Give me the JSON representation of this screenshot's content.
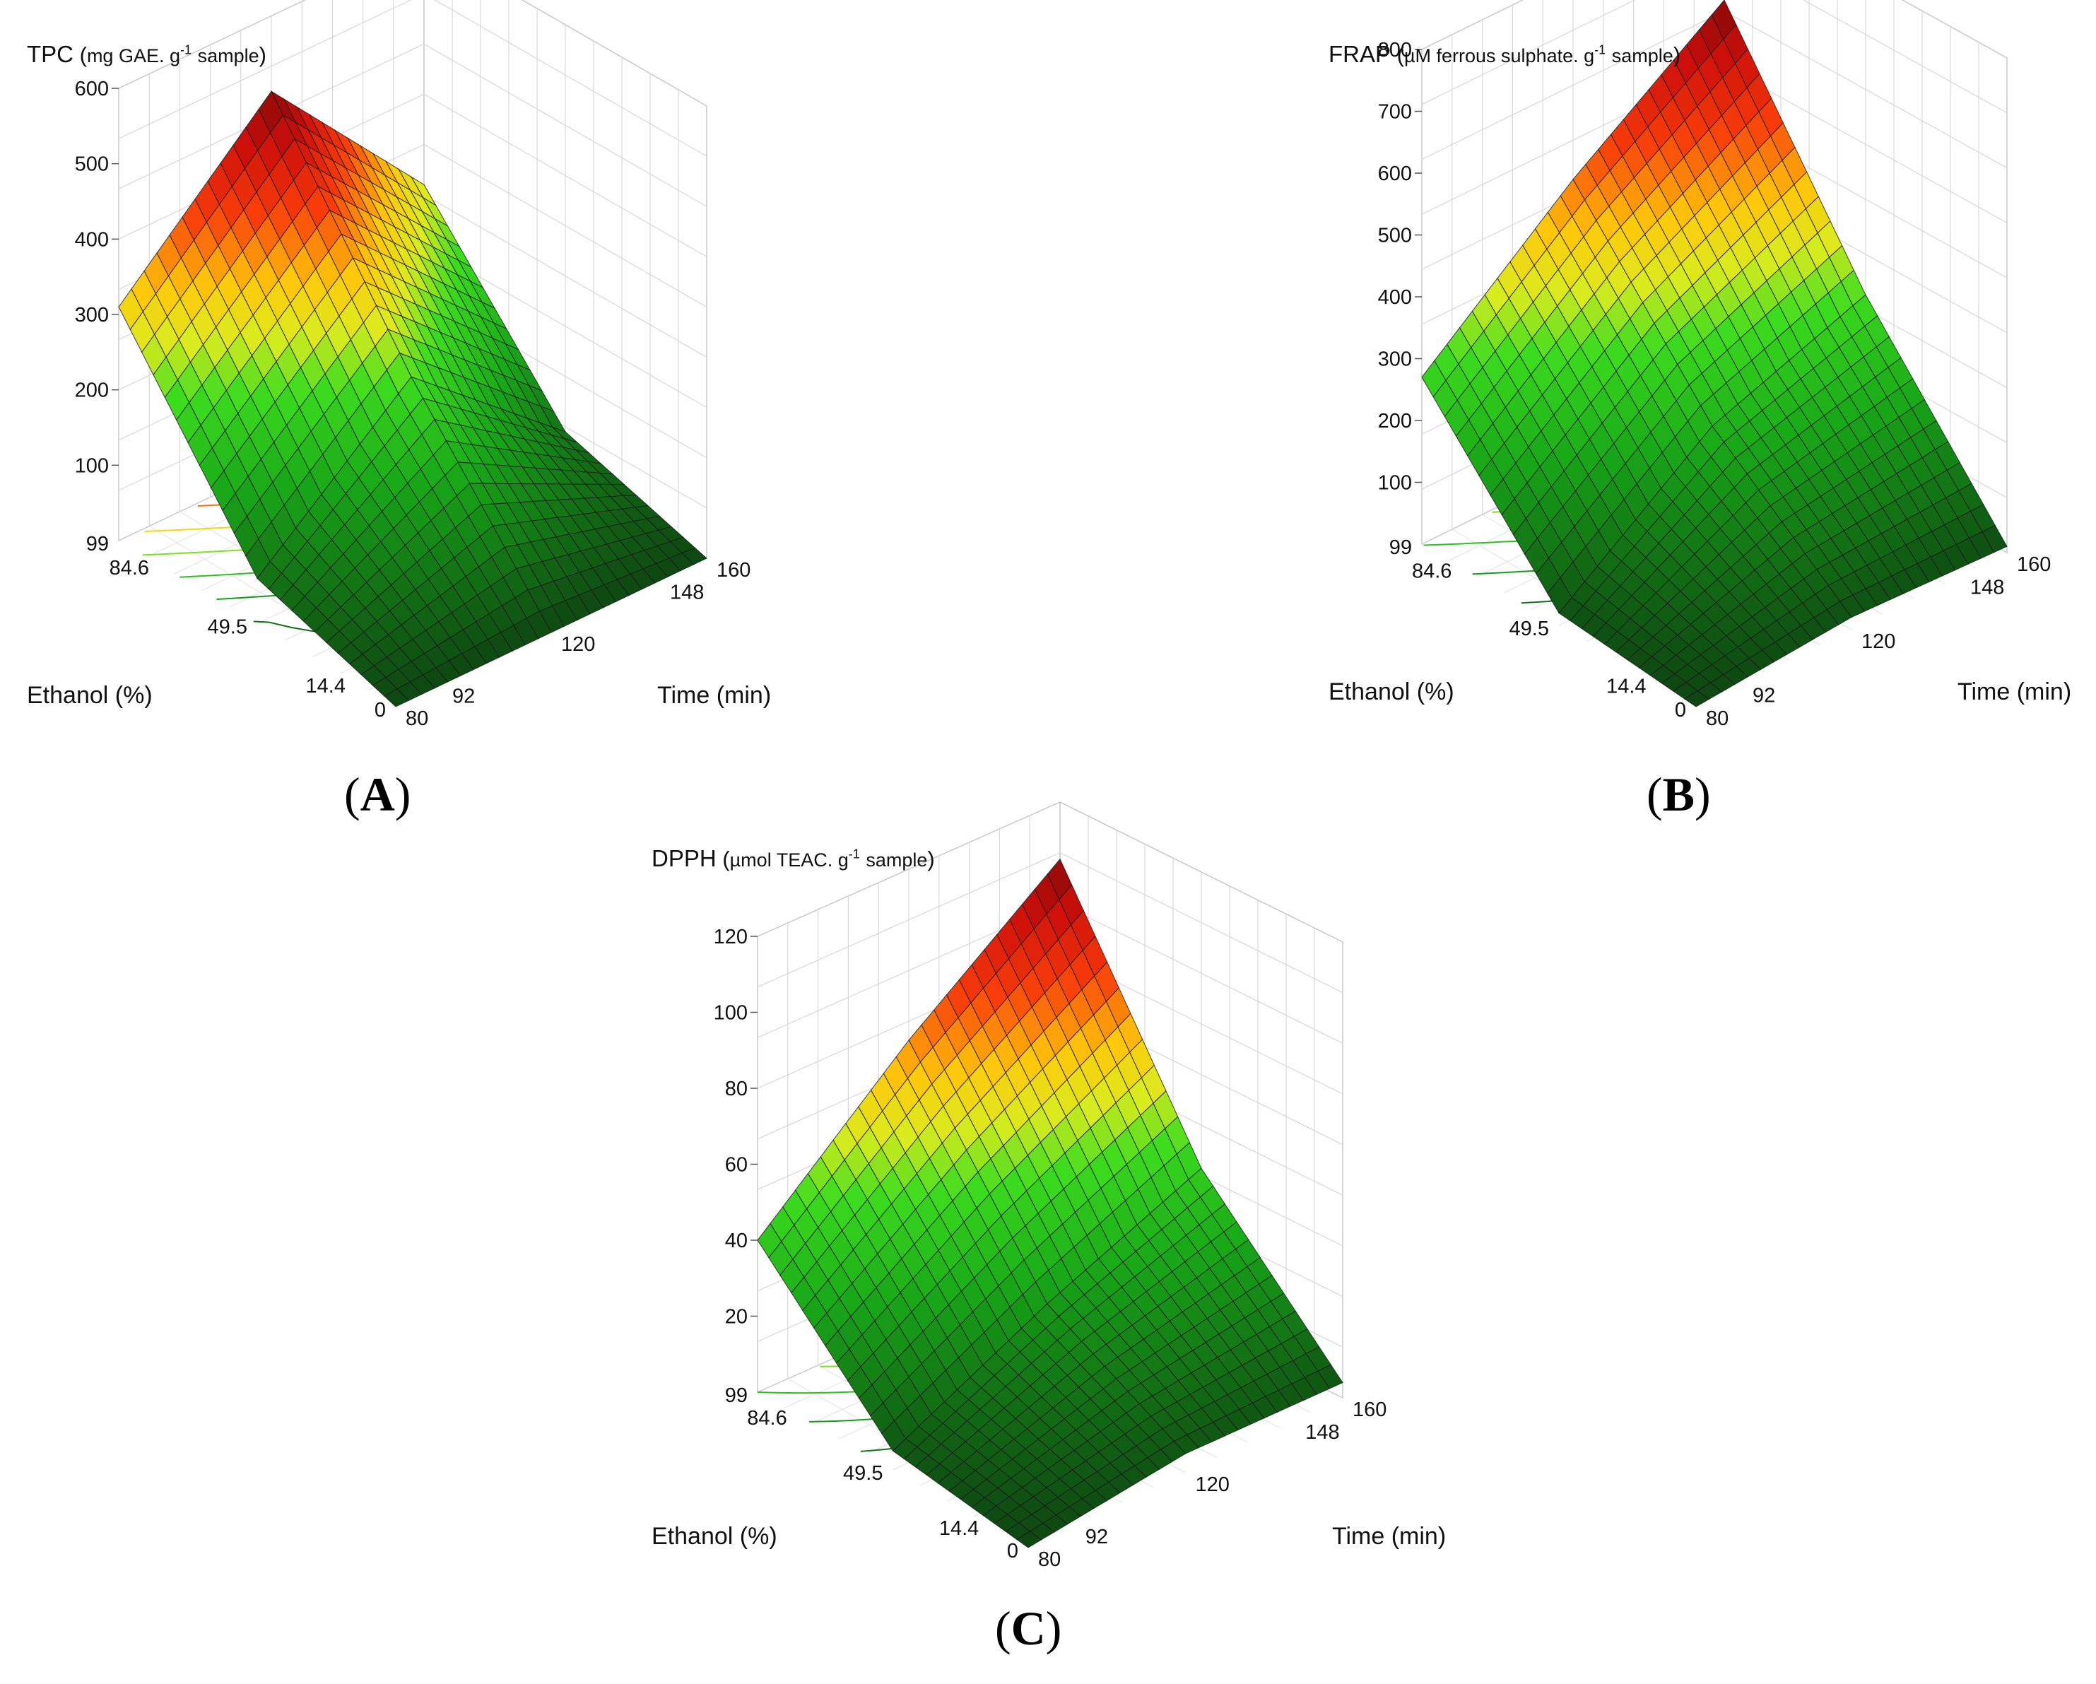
{
  "figure_labels": {
    "A": "A",
    "B": "B",
    "C": "C"
  },
  "chart_data": [
    {
      "id": "A",
      "type": "surface3d",
      "title": "TPC",
      "z_unit_prefix": "mg GAE. g",
      "z_unit_sup": "-1",
      "z_unit_suffix": "sample",
      "xlabel": "Ethanol (%)",
      "ylabel": "Time (min)",
      "x_ticks": [
        "0",
        "14.4",
        "49.5",
        "84.6",
        "99"
      ],
      "y_ticks": [
        "80",
        "92",
        "120",
        "148",
        "160"
      ],
      "z_ticks": [
        "100",
        "200",
        "300",
        "400",
        "500",
        "600"
      ],
      "xlim": [
        0,
        99
      ],
      "ylim": [
        80,
        160
      ],
      "zlim": [
        0,
        600
      ],
      "surface_samples": {
        "ethanol": [
          99,
          49.5,
          0
        ],
        "time": [
          80,
          120,
          160
        ],
        "values": [
          [
            310,
            500,
            280
          ],
          [
            60,
            230,
            60
          ],
          [
            0,
            0,
            0
          ]
        ]
      },
      "color_scale": "green-yellow-red"
    },
    {
      "id": "B",
      "type": "surface3d",
      "title": "FRAP",
      "z_unit_prefix": "µM ferrous sulphate. g",
      "z_unit_sup": "-1",
      "z_unit_suffix": "sample",
      "xlabel": "Ethanol (%)",
      "ylabel": "Time (min)",
      "x_ticks": [
        "0",
        "14.4",
        "49.5",
        "84.6",
        "99"
      ],
      "y_ticks": [
        "80",
        "92",
        "120",
        "148",
        "160"
      ],
      "z_ticks": [
        "100",
        "200",
        "300",
        "400",
        "500",
        "600",
        "700",
        "800"
      ],
      "xlim": [
        0,
        99
      ],
      "ylim": [
        80,
        160
      ],
      "zlim": [
        0,
        800
      ],
      "surface_samples": {
        "ethanol": [
          99,
          49.5,
          0
        ],
        "time": [
          80,
          120,
          160
        ],
        "values": [
          [
            270,
            470,
            640
          ],
          [
            20,
            200,
            290
          ],
          [
            0,
            20,
            10
          ]
        ]
      },
      "color_scale": "green-yellow-red"
    },
    {
      "id": "C",
      "type": "surface3d",
      "title": "DPPH",
      "z_unit_prefix": "µmol TEAC. g",
      "z_unit_sup": "-1",
      "z_unit_suffix": "sample",
      "xlabel": "Ethanol (%)",
      "ylabel": "Time (min)",
      "x_ticks": [
        "0",
        "14.4",
        "49.5",
        "84.6",
        "99"
      ],
      "y_ticks": [
        "80",
        "92",
        "120",
        "148",
        "160"
      ],
      "z_ticks": [
        "20",
        "40",
        "60",
        "80",
        "100",
        "120"
      ],
      "xlim": [
        0,
        99
      ],
      "ylim": [
        80,
        160
      ],
      "zlim": [
        0,
        120
      ],
      "surface_samples": {
        "ethanol": [
          99,
          49.5,
          0
        ],
        "time": [
          80,
          120,
          160
        ],
        "values": [
          [
            40,
            75,
            105
          ],
          [
            5,
            25,
            42
          ],
          [
            0,
            5,
            4
          ]
        ]
      },
      "color_scale": "green-yellow-red"
    }
  ]
}
